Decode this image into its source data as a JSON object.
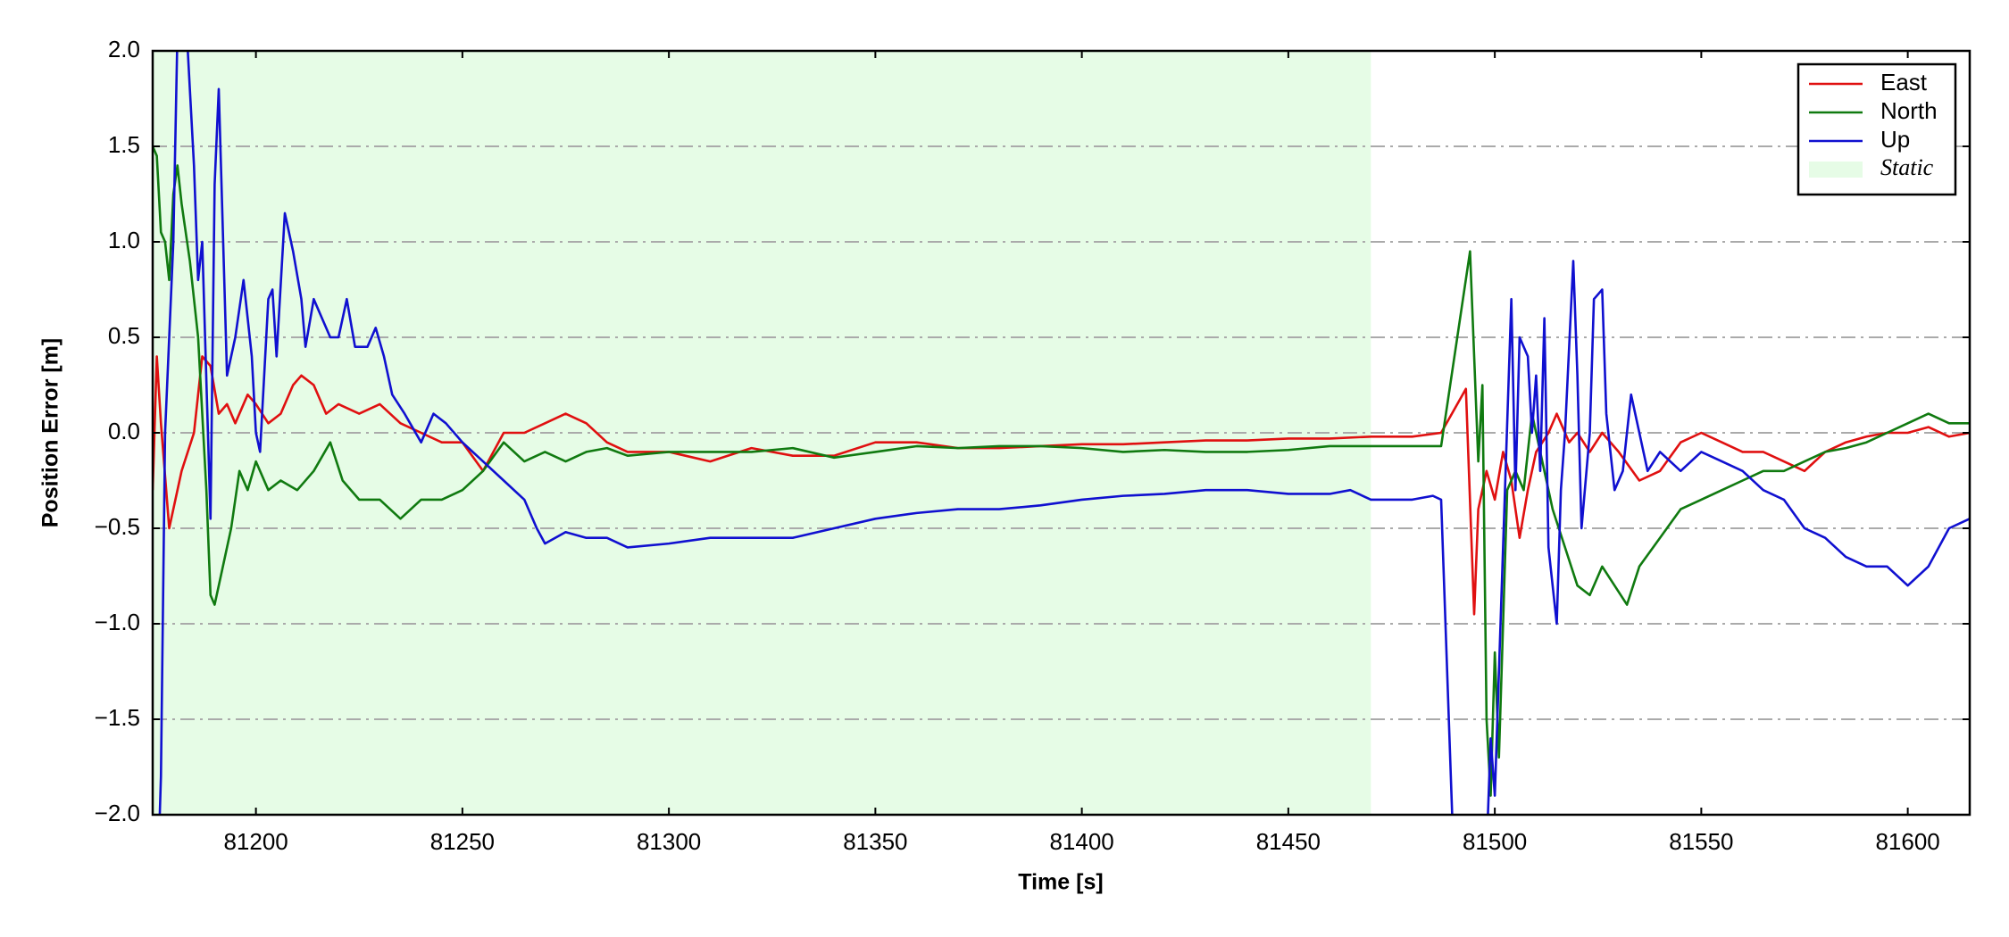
{
  "chart_data": {
    "type": "line",
    "xlabel": "Time [s]",
    "ylabel": "Position Error [m]",
    "xlim": [
      81175,
      81615
    ],
    "ylim": [
      -2.0,
      2.0
    ],
    "xticks": [
      81200,
      81250,
      81300,
      81350,
      81400,
      81450,
      81500,
      81550,
      81600
    ],
    "yticks": [
      {
        "value": -2.0,
        "label": "−2.0"
      },
      {
        "value": -1.5,
        "label": "−1.5"
      },
      {
        "value": -1.0,
        "label": "−1.0"
      },
      {
        "value": -0.5,
        "label": "−0.5"
      },
      {
        "value": 0,
        "label": "0.0"
      },
      {
        "value": 0.5,
        "label": "0.5"
      },
      {
        "value": 1.0,
        "label": "1.0"
      },
      {
        "value": 1.5,
        "label": "1.5"
      },
      {
        "value": 2.0,
        "label": "2.0"
      }
    ],
    "grid": true,
    "legend": "upper right",
    "static_label": "Static",
    "static_color": "#e6fce6",
    "static_span": [
      81175,
      81470
    ],
    "series": [
      {
        "name": "East",
        "color": "#e01010",
        "x": [
          81175,
          81176,
          81177,
          81179,
          81182,
          81185,
          81187,
          81189,
          81191,
          81193,
          81195,
          81198,
          81200,
          81203,
          81206,
          81209,
          81211,
          81214,
          81217,
          81220,
          81225,
          81230,
          81235,
          81240,
          81245,
          81250,
          81255,
          81260,
          81265,
          81270,
          81275,
          81280,
          81285,
          81290,
          81300,
          81310,
          81320,
          81330,
          81340,
          81350,
          81360,
          81370,
          81380,
          81390,
          81400,
          81410,
          81420,
          81430,
          81440,
          81450,
          81460,
          81470,
          81480,
          81487,
          81493,
          81495,
          81496,
          81498,
          81500,
          81502,
          81504,
          81506,
          81508,
          81510,
          81513,
          81515,
          81518,
          81520,
          81523,
          81526,
          81530,
          81535,
          81540,
          81545,
          81550,
          81555,
          81560,
          81565,
          81570,
          81575,
          81580,
          81585,
          81590,
          81595,
          81600,
          81605,
          81610,
          81615
        ],
        "values": [
          -0.3,
          0.4,
          0.05,
          -0.5,
          -0.2,
          0.0,
          0.4,
          0.35,
          0.1,
          0.15,
          0.05,
          0.2,
          0.15,
          0.05,
          0.1,
          0.25,
          0.3,
          0.25,
          0.1,
          0.15,
          0.1,
          0.15,
          0.05,
          0.0,
          -0.05,
          -0.05,
          -0.2,
          0.0,
          0.0,
          0.05,
          0.1,
          0.05,
          -0.05,
          -0.1,
          -0.1,
          -0.15,
          -0.08,
          -0.12,
          -0.12,
          -0.05,
          -0.05,
          -0.08,
          -0.08,
          -0.07,
          -0.06,
          -0.06,
          -0.05,
          -0.04,
          -0.04,
          -0.03,
          -0.03,
          -0.02,
          -0.02,
          0.0,
          0.23,
          -0.95,
          -0.4,
          -0.2,
          -0.35,
          -0.1,
          -0.25,
          -0.55,
          -0.3,
          -0.1,
          0.0,
          0.1,
          -0.05,
          0.0,
          -0.1,
          0.0,
          -0.1,
          -0.25,
          -0.2,
          -0.05,
          0.0,
          -0.05,
          -0.1,
          -0.1,
          -0.15,
          -0.2,
          -0.1,
          -0.05,
          -0.02,
          0.0,
          0.0,
          0.03,
          -0.02,
          0.0
        ]
      },
      {
        "name": "North",
        "color": "#107a10",
        "x": [
          81175,
          81176,
          81177,
          81178,
          81179,
          81180,
          81181,
          81182,
          81184,
          81186,
          81188,
          81189,
          81190,
          81192,
          81194,
          81196,
          81198,
          81200,
          81203,
          81206,
          81210,
          81214,
          81218,
          81221,
          81225,
          81230,
          81235,
          81240,
          81245,
          81250,
          81255,
          81260,
          81265,
          81270,
          81275,
          81280,
          81285,
          81290,
          81300,
          81310,
          81320,
          81330,
          81340,
          81350,
          81360,
          81370,
          81380,
          81390,
          81400,
          81410,
          81420,
          81430,
          81440,
          81450,
          81460,
          81470,
          81480,
          81487,
          81494,
          81496,
          81497,
          81498,
          81499,
          81500,
          81501,
          81503,
          81505,
          81507,
          81509,
          81511,
          81514,
          81517,
          81520,
          81523,
          81526,
          81529,
          81532,
          81535,
          81540,
          81545,
          81550,
          81555,
          81560,
          81565,
          81570,
          81575,
          81580,
          81585,
          81590,
          81595,
          81600,
          81605,
          81610,
          81615
        ],
        "values": [
          1.5,
          1.45,
          1.05,
          1.0,
          0.8,
          1.25,
          1.4,
          1.2,
          0.9,
          0.5,
          -0.3,
          -0.85,
          -0.9,
          -0.7,
          -0.5,
          -0.2,
          -0.3,
          -0.15,
          -0.3,
          -0.25,
          -0.3,
          -0.2,
          -0.05,
          -0.25,
          -0.35,
          -0.35,
          -0.45,
          -0.35,
          -0.35,
          -0.3,
          -0.2,
          -0.05,
          -0.15,
          -0.1,
          -0.15,
          -0.1,
          -0.08,
          -0.12,
          -0.1,
          -0.1,
          -0.1,
          -0.08,
          -0.13,
          -0.1,
          -0.07,
          -0.08,
          -0.07,
          -0.07,
          -0.08,
          -0.1,
          -0.09,
          -0.1,
          -0.1,
          -0.09,
          -0.07,
          -0.07,
          -0.07,
          -0.07,
          0.95,
          -0.15,
          0.25,
          -1.5,
          -1.9,
          -1.15,
          -1.7,
          -0.3,
          -0.2,
          -0.3,
          0.1,
          -0.1,
          -0.4,
          -0.6,
          -0.8,
          -0.85,
          -0.7,
          -0.8,
          -0.9,
          -0.7,
          -0.55,
          -0.4,
          -0.35,
          -0.3,
          -0.25,
          -0.2,
          -0.2,
          -0.15,
          -0.1,
          -0.08,
          -0.05,
          0.0,
          0.05,
          0.1,
          0.05,
          0.05
        ]
      },
      {
        "name": "Up",
        "color": "#1010d0",
        "x": [
          81175,
          81176,
          81177,
          81178,
          81180,
          81181,
          81182,
          81183,
          81185,
          81186,
          81187,
          81189,
          81190,
          81191,
          81193,
          81195,
          81197,
          81199,
          81200,
          81201,
          81203,
          81204,
          81205,
          81207,
          81209,
          81211,
          81212,
          81214,
          81216,
          81218,
          81220,
          81222,
          81224,
          81227,
          81229,
          81231,
          81233,
          81236,
          81240,
          81243,
          81246,
          81250,
          81255,
          81260,
          81265,
          81268,
          81270,
          81275,
          81280,
          81285,
          81290,
          81300,
          81310,
          81320,
          81330,
          81340,
          81350,
          81360,
          81370,
          81380,
          81390,
          81400,
          81410,
          81420,
          81430,
          81440,
          81450,
          81460,
          81465,
          81470,
          81475,
          81480,
          81485,
          81487,
          81490,
          81492,
          81495,
          81498,
          81499,
          81500,
          81502,
          81504,
          81505,
          81506,
          81508,
          81509,
          81510,
          81511,
          81512,
          81513,
          81515,
          81516,
          81517,
          81519,
          81520,
          81521,
          81523,
          81524,
          81526,
          81527,
          81529,
          81531,
          81533,
          81535,
          81537,
          81540,
          81545,
          81550,
          81555,
          81560,
          81565,
          81570,
          81575,
          81580,
          81585,
          81590,
          81595,
          81600,
          81605,
          81610,
          81615
        ],
        "values": [
          -2.0,
          -2.5,
          -1.8,
          0.0,
          1.0,
          2.1,
          2.5,
          2.2,
          1.4,
          0.8,
          1.0,
          -0.45,
          1.3,
          1.8,
          0.3,
          0.5,
          0.8,
          0.4,
          0.0,
          -0.1,
          0.7,
          0.75,
          0.4,
          1.15,
          0.95,
          0.7,
          0.45,
          0.7,
          0.6,
          0.5,
          0.5,
          0.7,
          0.45,
          0.45,
          0.55,
          0.4,
          0.2,
          0.1,
          -0.05,
          0.1,
          0.05,
          -0.05,
          -0.15,
          -0.25,
          -0.35,
          -0.5,
          -0.58,
          -0.52,
          -0.55,
          -0.55,
          -0.6,
          -0.58,
          -0.55,
          -0.55,
          -0.55,
          -0.5,
          -0.45,
          -0.42,
          -0.4,
          -0.4,
          -0.38,
          -0.35,
          -0.33,
          -0.32,
          -0.3,
          -0.3,
          -0.32,
          -0.32,
          -0.3,
          -0.35,
          -0.35,
          -0.35,
          -0.33,
          -0.35,
          -2.2,
          -2.5,
          -2.5,
          -2.2,
          -1.6,
          -1.9,
          -0.6,
          0.7,
          -0.3,
          0.5,
          0.4,
          0.0,
          0.3,
          -0.2,
          0.6,
          -0.6,
          -1.0,
          -0.3,
          0.0,
          0.9,
          0.3,
          -0.5,
          0.0,
          0.7,
          0.75,
          0.1,
          -0.3,
          -0.2,
          0.2,
          0.0,
          -0.2,
          -0.1,
          -0.2,
          -0.1,
          -0.15,
          -0.2,
          -0.3,
          -0.35,
          -0.5,
          -0.55,
          -0.65,
          -0.7,
          -0.7,
          -0.8,
          -0.7,
          -0.5,
          -0.45
        ]
      }
    ]
  }
}
